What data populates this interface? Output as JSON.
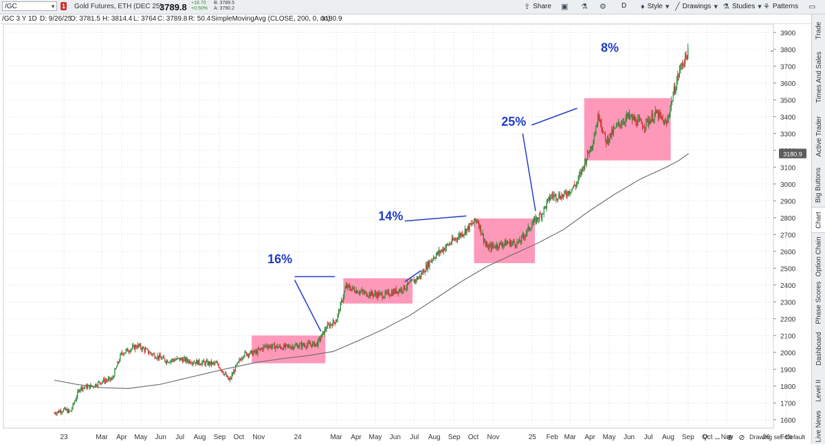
{
  "toolbar": {
    "symbol": "/GC",
    "badge": "1",
    "description": "Gold Futures, ETH (DEC 25)",
    "last_price": "3789.8",
    "change": "+18.70",
    "change_pct": "+0.50%",
    "bid": "B: 3789.5",
    "ask": "A: 3790.2",
    "share_label": "Share",
    "period_label": "D",
    "style_label": "Style",
    "drawings_label": "Drawings",
    "studies_label": "Studies",
    "patterns_label": "Patterns"
  },
  "infobar": {
    "instrument": "/GC 3 Y 1D",
    "date": "D: 9/26/25",
    "open": "O: 3781.5",
    "high": "H: 3814.4",
    "low": "L: 3764",
    "close": "C: 3789.8",
    "rsi": "R: 50.4",
    "study": "SimpleMovingAvg (CLOSE, 200, 0, no)",
    "study_value": "3180.9"
  },
  "sidebar": {
    "tabs": [
      "Trade",
      "Times And Sales",
      "Active Trader",
      "Big Buttons",
      "Chart",
      "Option Chain",
      "Phase Scores",
      "Dashboard",
      "Level II",
      "Live News"
    ],
    "active": "Chart"
  },
  "footer": {
    "drawing_set": "Drawing set: Default"
  },
  "colors": {
    "up": "#2a8a3a",
    "down": "#d03030",
    "sma": "#6f6f6f",
    "box": "#ff7fa8",
    "annotation": "#1f3cc8",
    "grid": "#d7d7d7"
  },
  "chart_data": {
    "type": "candlestick",
    "x_tick_labels": [
      "23",
      "Mar",
      "Apr",
      "May",
      "Jun",
      "Jul",
      "Aug",
      "Sep",
      "Oct",
      "Nov",
      "24",
      "Mar",
      "Apr",
      "May",
      "Jun",
      "Jul",
      "Aug",
      "Sep",
      "Oct",
      "Nov",
      "25",
      "Feb",
      "Mar",
      "Apr",
      "May",
      "Jun",
      "Jul",
      "Aug",
      "Sep",
      "Oct",
      "Nov",
      "26",
      "Feb"
    ],
    "x_tick_offsets_days": [
      0,
      59,
      90,
      120,
      151,
      181,
      212,
      243,
      273,
      304,
      365,
      425,
      456,
      486,
      517,
      547,
      578,
      609,
      639,
      670,
      731,
      762,
      790,
      821,
      851,
      882,
      912,
      943,
      974,
      1004,
      1035,
      1096,
      1127
    ],
    "ylim": [
      1550,
      3950
    ],
    "y_ticks": [
      1600,
      1700,
      1800,
      1900,
      2000,
      2100,
      2200,
      2300,
      2400,
      2500,
      2600,
      2700,
      2800,
      2900,
      3000,
      3100,
      3200,
      3300,
      3400,
      3500,
      3600,
      3700,
      3800,
      3900
    ],
    "price_path": [
      [
        -15,
        1640
      ],
      [
        0,
        1660
      ],
      [
        10,
        1645
      ],
      [
        25,
        1790
      ],
      [
        45,
        1800
      ],
      [
        60,
        1830
      ],
      [
        75,
        1840
      ],
      [
        90,
        1995
      ],
      [
        115,
        2040
      ],
      [
        135,
        1995
      ],
      [
        160,
        1950
      ],
      [
        180,
        1960
      ],
      [
        210,
        1940
      ],
      [
        240,
        1930
      ],
      [
        258,
        1830
      ],
      [
        268,
        1910
      ],
      [
        280,
        1990
      ],
      [
        300,
        2000
      ],
      [
        315,
        2040
      ],
      [
        340,
        2030
      ],
      [
        365,
        2040
      ],
      [
        395,
        2050
      ],
      [
        410,
        2150
      ],
      [
        425,
        2190
      ],
      [
        440,
        2390
      ],
      [
        470,
        2350
      ],
      [
        500,
        2340
      ],
      [
        530,
        2380
      ],
      [
        555,
        2450
      ],
      [
        575,
        2560
      ],
      [
        600,
        2640
      ],
      [
        625,
        2720
      ],
      [
        645,
        2790
      ],
      [
        660,
        2620
      ],
      [
        690,
        2650
      ],
      [
        710,
        2650
      ],
      [
        730,
        2760
      ],
      [
        745,
        2820
      ],
      [
        760,
        2930
      ],
      [
        780,
        2930
      ],
      [
        800,
        3000
      ],
      [
        815,
        3150
      ],
      [
        825,
        3250
      ],
      [
        835,
        3420
      ],
      [
        845,
        3250
      ],
      [
        865,
        3350
      ],
      [
        880,
        3400
      ],
      [
        905,
        3350
      ],
      [
        925,
        3420
      ],
      [
        940,
        3350
      ],
      [
        950,
        3520
      ],
      [
        962,
        3690
      ],
      [
        975,
        3790
      ]
    ],
    "sma_path": [
      [
        -15,
        1835
      ],
      [
        20,
        1810
      ],
      [
        60,
        1790
      ],
      [
        100,
        1785
      ],
      [
        150,
        1810
      ],
      [
        200,
        1855
      ],
      [
        250,
        1900
      ],
      [
        300,
        1940
      ],
      [
        345,
        1965
      ],
      [
        380,
        1980
      ],
      [
        420,
        2005
      ],
      [
        460,
        2070
      ],
      [
        500,
        2140
      ],
      [
        540,
        2220
      ],
      [
        580,
        2320
      ],
      [
        620,
        2420
      ],
      [
        660,
        2510
      ],
      [
        700,
        2580
      ],
      [
        740,
        2650
      ],
      [
        780,
        2730
      ],
      [
        820,
        2840
      ],
      [
        860,
        2940
      ],
      [
        900,
        3030
      ],
      [
        940,
        3100
      ],
      [
        960,
        3140
      ],
      [
        975,
        3181
      ]
    ],
    "sma_last_value": "3180.9",
    "highlight_boxes": [
      {
        "x0": 293,
        "x1": 408,
        "y0": 1935,
        "y1": 2100
      },
      {
        "x0": 436,
        "x1": 544,
        "y0": 2290,
        "y1": 2440
      },
      {
        "x0": 640,
        "x1": 735,
        "y0": 2530,
        "y1": 2795
      },
      {
        "x0": 812,
        "x1": 947,
        "y0": 3140,
        "y1": 3510
      }
    ],
    "annotations": [
      {
        "text": "16%",
        "x": 337,
        "y": 2530
      },
      {
        "text": "14%",
        "x": 510,
        "y": 2785
      },
      {
        "text": "25%",
        "x": 702,
        "y": 3345
      },
      {
        "text": "8%",
        "x": 852,
        "y": 3785
      }
    ],
    "trend_lines": [
      {
        "from": [
          360,
          2450
        ],
        "to": [
          423,
          2450
        ]
      },
      {
        "from": [
          360,
          2430
        ],
        "to": [
          401,
          2125
        ]
      },
      {
        "from": [
          532,
          2420
        ],
        "to": [
          557,
          2485
        ]
      },
      {
        "from": [
          532,
          2780
        ],
        "to": [
          628,
          2810
        ]
      },
      {
        "from": [
          730,
          3350
        ],
        "to": [
          801,
          3450
        ]
      },
      {
        "from": [
          716,
          3300
        ],
        "to": [
          736,
          2840
        ]
      }
    ]
  }
}
